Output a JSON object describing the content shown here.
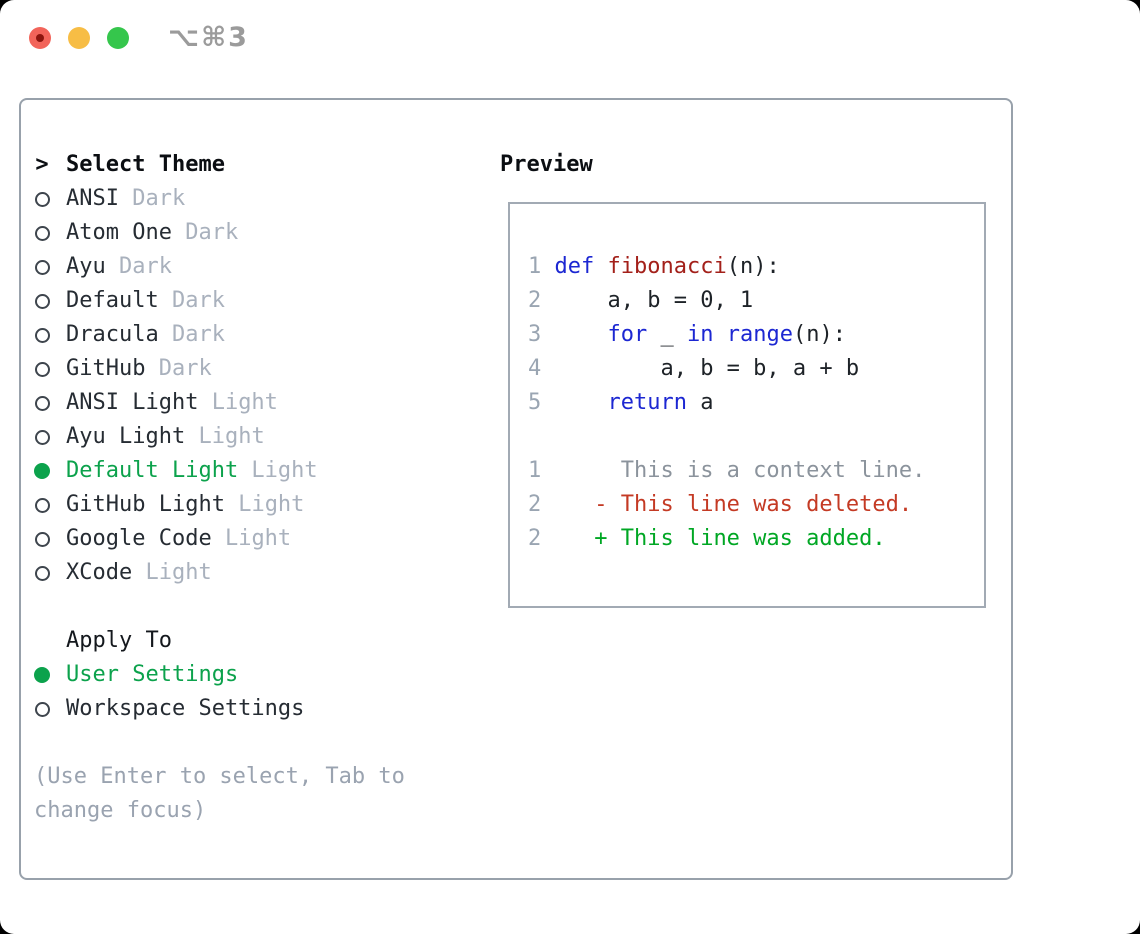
{
  "window": {
    "shortcut": "⌥⌘3"
  },
  "theme_menu": {
    "cursor": ">",
    "title": "Select Theme",
    "items": [
      {
        "label": "ANSI",
        "variant": "Dark",
        "selected": false
      },
      {
        "label": "Atom One",
        "variant": "Dark",
        "selected": false
      },
      {
        "label": "Ayu",
        "variant": "Dark",
        "selected": false
      },
      {
        "label": "Default",
        "variant": "Dark",
        "selected": false
      },
      {
        "label": "Dracula",
        "variant": "Dark",
        "selected": false
      },
      {
        "label": "GitHub",
        "variant": "Dark",
        "selected": false
      },
      {
        "label": "ANSI Light",
        "variant": "Light",
        "selected": false
      },
      {
        "label": "Ayu Light",
        "variant": "Light",
        "selected": false
      },
      {
        "label": "Default Light",
        "variant": "Light",
        "selected": true
      },
      {
        "label": "GitHub Light",
        "variant": "Light",
        "selected": false
      },
      {
        "label": "Google Code",
        "variant": "Light",
        "selected": false
      },
      {
        "label": "XCode",
        "variant": "Light",
        "selected": false
      }
    ]
  },
  "apply_to": {
    "title": "Apply To",
    "items": [
      {
        "label": "User Settings",
        "selected": true
      },
      {
        "label": "Workspace Settings",
        "selected": false
      }
    ]
  },
  "help": {
    "lines": [
      "(Use Enter to select, Tab to",
      "change focus)"
    ]
  },
  "preview": {
    "title": "Preview",
    "lines": [
      {
        "num": "1",
        "segments": [
          {
            "t": "def",
            "c": "kw"
          },
          {
            "t": " ",
            "c": "plain"
          },
          {
            "t": "fibonacci",
            "c": "fn"
          },
          {
            "t": "(n):",
            "c": "plain"
          }
        ]
      },
      {
        "num": "2",
        "segments": [
          {
            "t": "    a, b = 0, 1",
            "c": "plain"
          }
        ]
      },
      {
        "num": "3",
        "segments": [
          {
            "t": "    ",
            "c": "plain"
          },
          {
            "t": "for",
            "c": "kw"
          },
          {
            "t": " _ ",
            "c": "plain"
          },
          {
            "t": "in",
            "c": "kw"
          },
          {
            "t": " ",
            "c": "plain"
          },
          {
            "t": "range",
            "c": "kw"
          },
          {
            "t": "(n):",
            "c": "plain"
          }
        ]
      },
      {
        "num": "4",
        "segments": [
          {
            "t": "        a, b = b, a + b",
            "c": "plain"
          }
        ]
      },
      {
        "num": "5",
        "segments": [
          {
            "t": "    ",
            "c": "plain"
          },
          {
            "t": "return",
            "c": "kw"
          },
          {
            "t": " a",
            "c": "plain"
          }
        ]
      },
      {
        "num": "",
        "segments": []
      },
      {
        "num": "1",
        "segments": [
          {
            "t": "     This is a context line.",
            "c": "ctx"
          }
        ]
      },
      {
        "num": "2",
        "segments": [
          {
            "t": "   - This line was deleted.",
            "c": "del"
          }
        ]
      },
      {
        "num": "2",
        "segments": [
          {
            "t": "   + This line was added.",
            "c": "add"
          }
        ]
      }
    ]
  },
  "colors": {
    "accent_green": "#0ca24c",
    "keyword_blue": "#1c27d2",
    "function_red": "#a3201a",
    "diff_deleted_red": "#c43a24",
    "diff_added_green": "#00a724",
    "muted_variant_gray": "#a9b1bd",
    "traffic_red": "#f2645a",
    "traffic_yellow": "#f7bd45",
    "traffic_green": "#35c64c"
  }
}
